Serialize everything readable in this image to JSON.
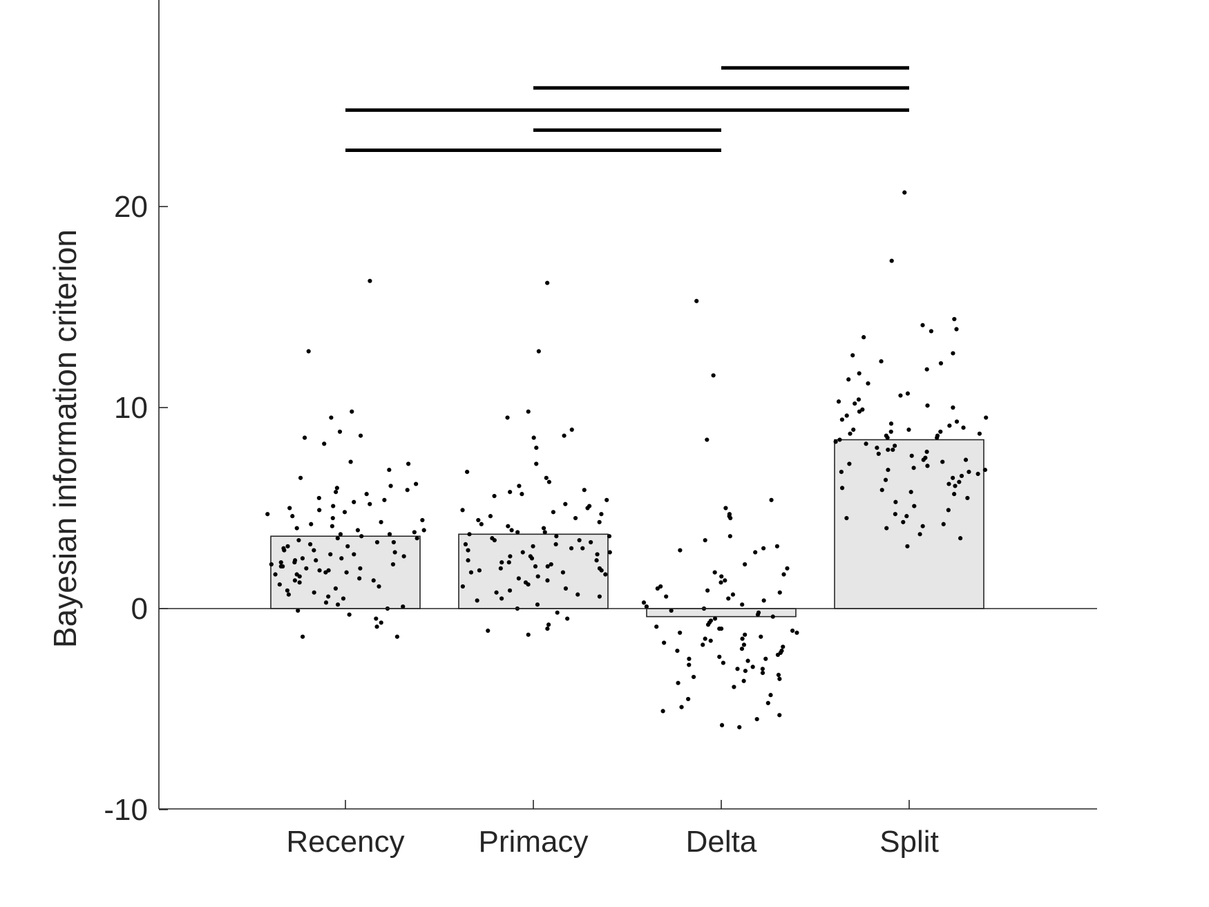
{
  "chart_data": {
    "type": "bar",
    "title": "",
    "xlabel": "",
    "ylabel": "Bayesian information criterion",
    "ylim": [
      -10,
      30.5
    ],
    "yticks": [
      -10,
      0,
      10,
      20
    ],
    "grid": false,
    "legend": "none",
    "categories": [
      "Recency",
      "Primacy",
      "Delta",
      "Split"
    ],
    "values": [
      3.6,
      3.7,
      -0.4,
      8.4
    ],
    "colors": {
      "bar_fill": "#e6e6e6",
      "bar_edge": "#262626",
      "axis": "#262626",
      "points": "#000000",
      "sig_lines": "#000000"
    },
    "significance": [
      {
        "from": "Recency",
        "to": "Delta",
        "y": 22.8
      },
      {
        "from": "Primacy",
        "to": "Delta",
        "y": 23.8
      },
      {
        "from": "Recency",
        "to": "Split",
        "y": 24.8
      },
      {
        "from": "Primacy",
        "to": "Split",
        "y": 25.9
      },
      {
        "from": "Delta",
        "to": "Split",
        "y": 26.9
      }
    ],
    "points": [
      {
        "category": "Recency",
        "values": [
          16.3,
          12.8,
          9.8,
          9.5,
          8.8,
          8.6,
          8.5,
          8.2,
          7.3,
          7.2,
          6.9,
          6.5,
          6.2,
          6.1,
          6.0,
          5.9,
          5.8,
          5.7,
          5.5,
          5.4,
          5.3,
          5.2,
          5.1,
          5.0,
          4.9,
          4.8,
          4.7,
          4.6,
          4.5,
          4.4,
          4.3,
          4.2,
          4.1,
          4.0,
          3.9,
          3.9,
          3.8,
          3.7,
          3.7,
          3.6,
          3.5,
          3.5,
          3.4,
          3.3,
          3.3,
          3.2,
          3.1,
          3.1,
          3.0,
          2.9,
          2.9,
          2.8,
          2.7,
          2.7,
          2.6,
          2.5,
          2.5,
          2.4,
          2.4,
          2.3,
          2.3,
          2.2,
          2.2,
          2.1,
          2.1,
          2.0,
          2.0,
          1.9,
          1.9,
          1.8,
          1.8,
          1.7,
          1.7,
          1.6,
          1.5,
          1.4,
          1.4,
          1.3,
          1.2,
          1.1,
          1.0,
          0.9,
          0.8,
          0.7,
          0.6,
          0.5,
          0.3,
          0.2,
          0.1,
          0.0,
          -0.1,
          -0.3,
          -0.5,
          -0.7,
          -0.9,
          -1.4,
          -1.4
        ]
      },
      {
        "category": "Primacy",
        "values": [
          16.2,
          12.8,
          9.8,
          9.5,
          8.9,
          8.6,
          8.5,
          8.0,
          7.2,
          6.8,
          6.5,
          6.3,
          6.1,
          5.9,
          5.8,
          5.7,
          5.6,
          5.4,
          5.2,
          5.1,
          5.0,
          4.9,
          4.8,
          4.7,
          4.6,
          4.5,
          4.4,
          4.3,
          4.2,
          4.1,
          4.0,
          3.9,
          3.8,
          3.8,
          3.7,
          3.6,
          3.6,
          3.5,
          3.4,
          3.4,
          3.3,
          3.2,
          3.2,
          3.1,
          3.0,
          3.0,
          2.9,
          2.8,
          2.8,
          2.7,
          2.6,
          2.6,
          2.5,
          2.4,
          2.4,
          2.3,
          2.3,
          2.2,
          2.1,
          2.1,
          2.0,
          2.0,
          1.9,
          1.9,
          1.8,
          1.8,
          1.7,
          1.6,
          1.5,
          1.4,
          1.3,
          1.2,
          1.1,
          1.0,
          0.9,
          0.8,
          0.7,
          0.6,
          0.5,
          0.4,
          0.2,
          0.0,
          -0.2,
          -0.5,
          -0.8,
          -1.0,
          -1.1,
          -1.3
        ]
      },
      {
        "category": "Delta",
        "values": [
          15.3,
          11.6,
          8.4,
          5.4,
          5.0,
          4.7,
          4.6,
          4.5,
          3.6,
          3.4,
          3.1,
          3.0,
          2.9,
          2.8,
          2.2,
          2.0,
          1.8,
          1.7,
          1.6,
          1.4,
          1.3,
          1.1,
          1.0,
          0.9,
          0.8,
          0.7,
          0.6,
          0.5,
          0.4,
          0.3,
          0.2,
          0.1,
          0.0,
          -0.1,
          -0.2,
          -0.3,
          -0.4,
          -0.5,
          -0.6,
          -0.7,
          -0.8,
          -0.9,
          -1.0,
          -1.0,
          -1.1,
          -1.2,
          -1.2,
          -1.3,
          -1.4,
          -1.5,
          -1.5,
          -1.6,
          -1.7,
          -1.8,
          -1.8,
          -1.9,
          -2.0,
          -2.1,
          -2.1,
          -2.2,
          -2.3,
          -2.4,
          -2.5,
          -2.5,
          -2.6,
          -2.7,
          -2.8,
          -2.9,
          -3.0,
          -3.0,
          -3.1,
          -3.2,
          -3.3,
          -3.4,
          -3.5,
          -3.6,
          -3.7,
          -3.9,
          -4.3,
          -4.5,
          -4.7,
          -4.9,
          -5.1,
          -5.3,
          -5.5,
          -5.8,
          -5.9
        ]
      },
      {
        "category": "Split",
        "values": [
          20.7,
          17.3,
          14.4,
          14.1,
          13.9,
          13.8,
          13.5,
          12.7,
          12.6,
          12.3,
          12.2,
          11.9,
          11.7,
          11.4,
          11.2,
          10.7,
          10.6,
          10.4,
          10.3,
          10.2,
          10.1,
          10.0,
          9.9,
          9.8,
          9.6,
          9.5,
          9.4,
          9.3,
          9.2,
          9.1,
          9.0,
          8.9,
          8.9,
          8.8,
          8.8,
          8.7,
          8.7,
          8.6,
          8.6,
          8.5,
          8.5,
          8.4,
          8.3,
          8.2,
          8.1,
          8.0,
          7.9,
          7.9,
          7.8,
          7.7,
          7.6,
          7.5,
          7.4,
          7.4,
          7.3,
          7.2,
          7.1,
          7.0,
          6.9,
          6.9,
          6.8,
          6.8,
          6.7,
          6.6,
          6.5,
          6.4,
          6.3,
          6.2,
          6.1,
          6.0,
          5.9,
          5.8,
          5.7,
          5.5,
          5.3,
          5.1,
          4.9,
          4.7,
          4.6,
          4.5,
          4.3,
          4.2,
          4.1,
          4.0,
          3.7,
          3.5,
          3.1
        ]
      }
    ]
  }
}
